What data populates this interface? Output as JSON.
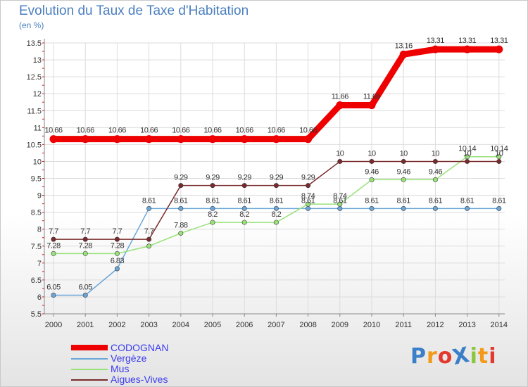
{
  "header": {
    "title": "Evolution du Taux de Taxe d'Habitation",
    "unit": "(en %)"
  },
  "logo": {
    "text": "ProXiti",
    "letters": [
      "P",
      "r",
      "o",
      "X",
      "i",
      "t",
      "i"
    ],
    "colors": [
      "#3b7fc8",
      "#f39a1a",
      "#e23a2e",
      "#3b7fc8",
      "#8cc63f",
      "#f39a1a",
      "#e23a2e"
    ]
  },
  "chart_data": {
    "type": "line",
    "title": "Evolution du Taux de Taxe d'Habitation",
    "ylabel": "(en %)",
    "xlabel": "",
    "x": [
      "2000",
      "2001",
      "2002",
      "2003",
      "2004",
      "2005",
      "2006",
      "2007",
      "2008",
      "2009",
      "2010",
      "2011",
      "2012",
      "2013",
      "2014"
    ],
    "ylim": [
      5.5,
      13.5
    ],
    "yticks": [
      "5.5",
      "6",
      "6.5",
      "7",
      "7.5",
      "8",
      "8.5",
      "9",
      "9.5",
      "10",
      "10.5",
      "11",
      "11.5",
      "12",
      "12.5",
      "13",
      "13.5"
    ],
    "grid": true,
    "legend": "bottom-left",
    "series": [
      {
        "name": "CODOGNAN",
        "color": "#ee0000",
        "values": [
          10.66,
          10.66,
          10.66,
          10.66,
          10.66,
          10.66,
          10.66,
          10.66,
          10.66,
          11.66,
          11.66,
          13.16,
          13.31,
          13.31,
          13.31
        ],
        "labels": [
          "10.66",
          "10.66",
          "10.66",
          "10.66",
          "10.66",
          "10.66",
          "10.66",
          "10.66",
          "10.66",
          "11.66",
          "11.66",
          "13.16",
          "13.31",
          "13.31",
          "13.31"
        ]
      },
      {
        "name": "Vergèze",
        "color": "#6aa6d8",
        "values": [
          6.05,
          6.05,
          6.83,
          8.61,
          8.61,
          8.61,
          8.61,
          8.61,
          8.61,
          8.61,
          8.61,
          8.61,
          8.61,
          8.61,
          8.61
        ],
        "labels": [
          "6.05",
          "6.05",
          "6.83",
          "8.61",
          "8.61",
          "8.61",
          "8.61",
          "8.61",
          "8.61",
          "8.61",
          "8.61",
          "8.61",
          "8.61",
          "8.61",
          "8.61"
        ]
      },
      {
        "name": "Mus",
        "color": "#99e27a",
        "values": [
          7.28,
          7.28,
          7.28,
          7.5,
          7.88,
          8.2,
          8.2,
          8.2,
          8.74,
          8.74,
          9.46,
          9.46,
          9.46,
          10.14,
          10.14
        ],
        "labels": [
          "7.28",
          "7.28",
          "7.28",
          "",
          "7.88",
          "8.2",
          "8.2",
          "8.2",
          "8.74",
          "8.74",
          "9.46",
          "9.46",
          "9.46",
          "10.14",
          "10.14"
        ]
      },
      {
        "name": "Aigues-Vives",
        "color": "#7a2a2a",
        "values": [
          7.7,
          7.7,
          7.7,
          7.7,
          9.29,
          9.29,
          9.29,
          9.29,
          9.29,
          10,
          10,
          10,
          10,
          10,
          10
        ],
        "labels": [
          "7.7",
          "7.7",
          "7.7",
          "7.7",
          "9.29",
          "9.29",
          "9.29",
          "9.29",
          "9.29",
          "10",
          "10",
          "10",
          "10",
          "10",
          "10"
        ]
      }
    ]
  }
}
